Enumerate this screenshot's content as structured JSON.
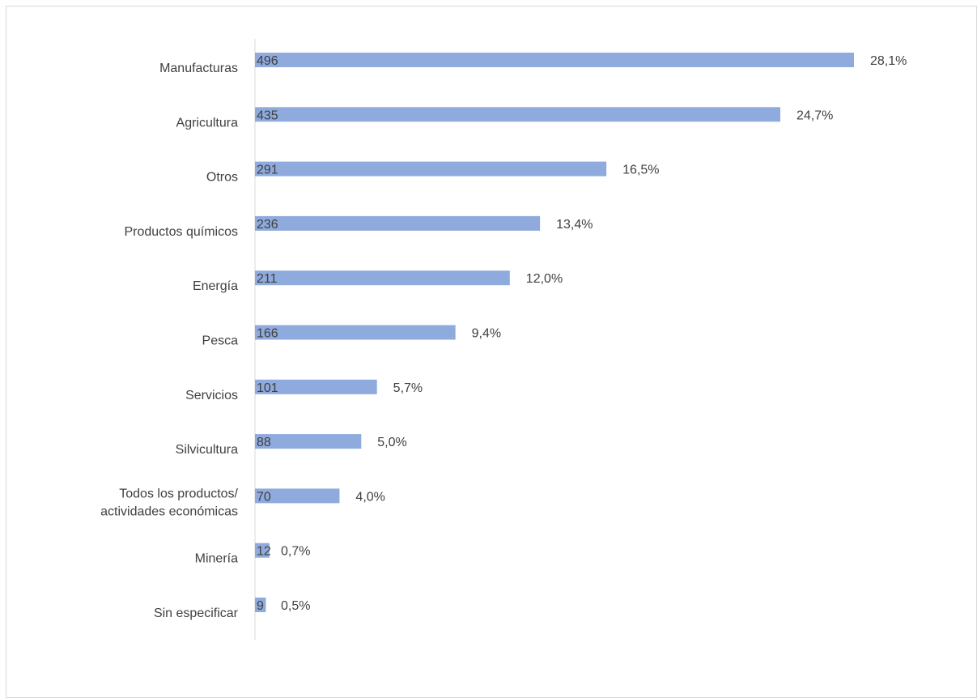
{
  "chart_data": {
    "type": "bar",
    "orientation": "horizontal",
    "categories": [
      [
        "Manufacturas"
      ],
      [
        "Agricultura"
      ],
      [
        "Otros"
      ],
      [
        "Productos químicos"
      ],
      [
        "Energía"
      ],
      [
        "Pesca"
      ],
      [
        "Servicios"
      ],
      [
        "Silvicultura"
      ],
      [
        "Todos los productos/",
        "actividades económicas"
      ],
      [
        "Minería"
      ],
      [
        "Sin especificar"
      ]
    ],
    "values": [
      496,
      435,
      291,
      236,
      211,
      166,
      101,
      88,
      70,
      12,
      9
    ],
    "value_labels": [
      "496",
      "435",
      "291",
      "236",
      "211",
      "166",
      "101",
      "88",
      "70",
      "12",
      "9"
    ],
    "percent_labels": [
      "28,1%",
      "24,7%",
      "16,5%",
      "13,4%",
      "12,0%",
      "9,4%",
      "5,7%",
      "5,0%",
      "4,0%",
      "0,7%",
      "0,5%"
    ],
    "xlim": [
      0,
      496
    ],
    "grid": false,
    "legend": "none",
    "colors": {
      "bar": "#8faadc",
      "text": "#404040",
      "axis": "#d9d9d9"
    }
  }
}
